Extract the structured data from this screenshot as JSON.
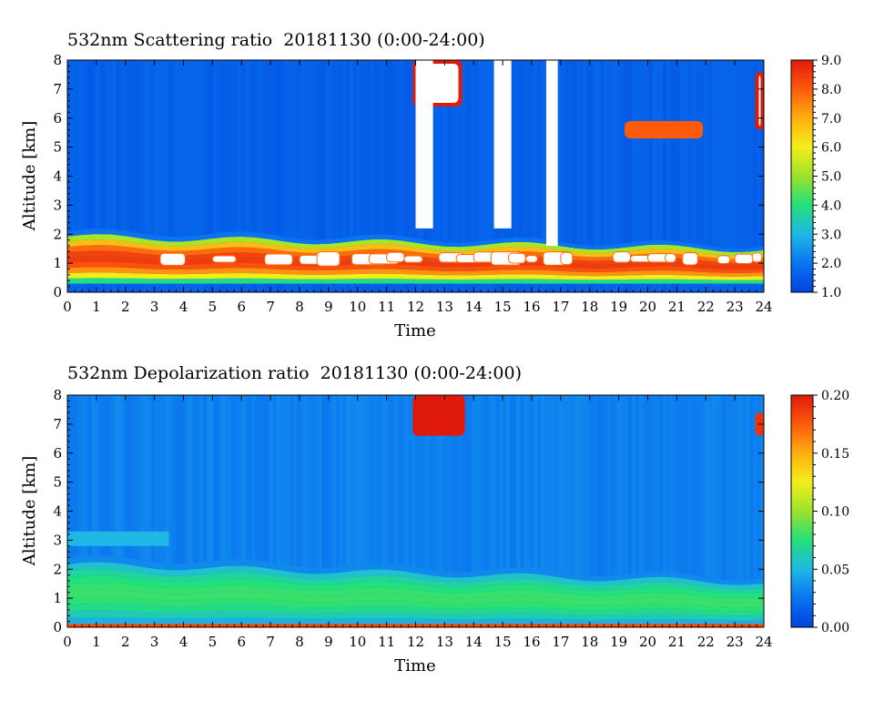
{
  "chart_data": [
    {
      "type": "heatmap",
      "title": "532nm Scattering ratio  20181130 (0:00-24:00)",
      "xlabel": "Time",
      "ylabel": "Altitude [km]",
      "xlim": [
        0,
        24
      ],
      "ylim": [
        0,
        8
      ],
      "xticks": [
        "0",
        "1",
        "2",
        "3",
        "4",
        "5",
        "6",
        "7",
        "8",
        "9",
        "10",
        "11",
        "12",
        "13",
        "14",
        "15",
        "16",
        "17",
        "18",
        "19",
        "20",
        "21",
        "22",
        "23",
        "24"
      ],
      "yticks": [
        "0",
        "1",
        "2",
        "3",
        "4",
        "5",
        "6",
        "7",
        "8"
      ],
      "colorbar": {
        "min": 1.0,
        "max": 9.0,
        "ticks": [
          "1.0",
          "2.0",
          "3.0",
          "4.0",
          "5.0",
          "6.0",
          "7.0",
          "8.0",
          "9.0"
        ],
        "colormap": [
          "#0044dd",
          "#0a74f0",
          "#1fb8e6",
          "#22e07a",
          "#9be22a",
          "#f3ee1a",
          "#ffae10",
          "#ff5a0a",
          "#e01a0a"
        ]
      },
      "background_level": 1.6,
      "features": [
        {
          "kind": "boundary_layer",
          "time_range": [
            0,
            24
          ],
          "base_km": 0.3,
          "top_km_start": 2.1,
          "top_km_end": 1.6,
          "peak_value": 8.5
        },
        {
          "kind": "clipped_aerosol",
          "time_range": [
            3.2,
            23.8
          ],
          "altitude_km": [
            0.9,
            1.4
          ],
          "value": "above 9.0"
        },
        {
          "kind": "cloud",
          "time_range": [
            11.9,
            13.6
          ],
          "altitude_km": [
            6.4,
            8.0
          ],
          "value": "above 9.0"
        },
        {
          "kind": "cloud",
          "time_range": [
            19.2,
            21.9
          ],
          "altitude_km": [
            5.3,
            5.9
          ],
          "value": 8.0
        },
        {
          "kind": "cloud",
          "time_range": [
            23.7,
            24.0
          ],
          "altitude_km": [
            5.6,
            7.6
          ],
          "value": "above 9.0"
        },
        {
          "kind": "attenuation_gap",
          "time_range": [
            12.0,
            12.6
          ],
          "altitude_km": [
            2.2,
            8.0
          ]
        },
        {
          "kind": "attenuation_gap",
          "time_range": [
            14.7,
            15.3
          ],
          "altitude_km": [
            2.2,
            8.0
          ]
        },
        {
          "kind": "attenuation_gap",
          "time_range": [
            16.5,
            16.9
          ],
          "altitude_km": [
            1.6,
            8.0
          ]
        }
      ]
    },
    {
      "type": "heatmap",
      "title": "532nm Depolarization ratio  20181130 (0:00-24:00)",
      "xlabel": "Time",
      "ylabel": "Altitude [km]",
      "xlim": [
        0,
        24
      ],
      "ylim": [
        0,
        8
      ],
      "xticks": [
        "0",
        "1",
        "2",
        "3",
        "4",
        "5",
        "6",
        "7",
        "8",
        "9",
        "10",
        "11",
        "12",
        "13",
        "14",
        "15",
        "16",
        "17",
        "18",
        "19",
        "20",
        "21",
        "22",
        "23",
        "24"
      ],
      "yticks": [
        "0",
        "1",
        "2",
        "3",
        "4",
        "5",
        "6",
        "7",
        "8"
      ],
      "colorbar": {
        "min": 0.0,
        "max": 0.2,
        "ticks": [
          "0.00",
          "0.05",
          "0.10",
          "0.15",
          "0.20"
        ],
        "colormap": [
          "#0044dd",
          "#0a74f0",
          "#1fb8e6",
          "#22e07a",
          "#9be22a",
          "#f3ee1a",
          "#ffae10",
          "#ff5a0a",
          "#e01a0a"
        ]
      },
      "background_level": 0.03,
      "features": [
        {
          "kind": "dust_layer",
          "time_range": [
            0,
            24
          ],
          "base_km": 0.1,
          "top_km_start": 2.4,
          "top_km_end": 1.7,
          "value": 0.08
        },
        {
          "kind": "elevated_layer",
          "time_range": [
            0,
            3.5
          ],
          "altitude_km": [
            2.8,
            3.3
          ],
          "value": 0.05
        },
        {
          "kind": "ground_band",
          "time_range": [
            0,
            24
          ],
          "altitude_km": [
            0.0,
            0.12
          ],
          "value": 0.18
        },
        {
          "kind": "cloud",
          "time_range": [
            11.9,
            13.7
          ],
          "altitude_km": [
            6.6,
            8.0
          ],
          "value": 0.2
        },
        {
          "kind": "cloud",
          "time_range": [
            23.7,
            24.0
          ],
          "altitude_km": [
            6.6,
            7.4
          ],
          "value": 0.19
        }
      ]
    }
  ]
}
